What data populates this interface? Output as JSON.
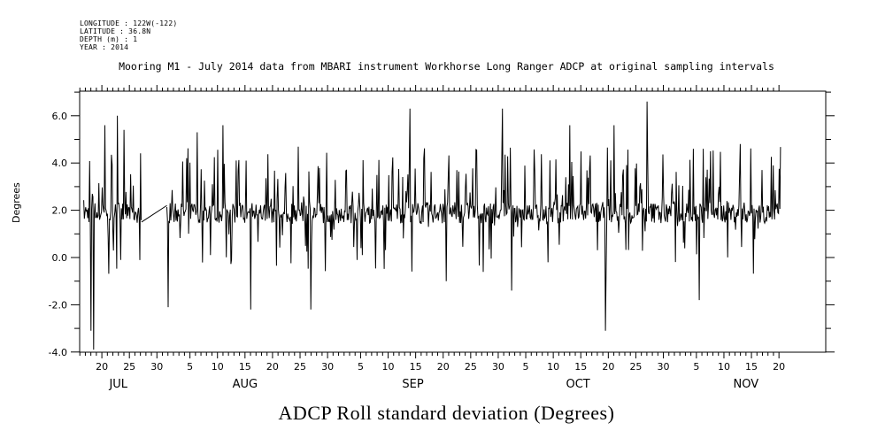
{
  "meta": {
    "lines": [
      "LONGITUDE : 122W(-122)",
      "LATITUDE : 36.8N",
      "DEPTH (m) : 1",
      "YEAR : 2014"
    ]
  },
  "title": "Mooring M1 - July 2014 data from MBARI instrument Workhorse Long Ranger ADCP at original sampling intervals",
  "bottom_title": "ADCP Roll standard deviation (Degrees)",
  "chart_data": {
    "type": "line",
    "title": "Mooring M1 - July 2014 data from MBARI instrument Workhorse Long Ranger ADCP at original sampling intervals",
    "xlabel": "",
    "ylabel": "Degrees",
    "ylim": [
      -4.0,
      7.0
    ],
    "xlim_days": [
      0,
      128.5
    ],
    "x_origin": "2014-07-15",
    "y_ticks": [
      "-4.0",
      "-2.0",
      "0.0",
      "2.0",
      "4.0",
      "6.0"
    ],
    "y_tick_values": [
      -4,
      -2,
      0,
      2,
      4,
      6
    ],
    "x_ticks": [
      {
        "day": 5,
        "label": "20"
      },
      {
        "day": 10,
        "label": "25"
      },
      {
        "day": 15,
        "label": "30"
      },
      {
        "day": 21,
        "label": "5"
      },
      {
        "day": 26,
        "label": "10"
      },
      {
        "day": 31,
        "label": "15"
      },
      {
        "day": 36,
        "label": "20"
      },
      {
        "day": 41,
        "label": "25"
      },
      {
        "day": 46,
        "label": "30"
      },
      {
        "day": 52,
        "label": "5"
      },
      {
        "day": 57,
        "label": "10"
      },
      {
        "day": 62,
        "label": "15"
      },
      {
        "day": 67,
        "label": "20"
      },
      {
        "day": 72,
        "label": "25"
      },
      {
        "day": 77,
        "label": "30"
      },
      {
        "day": 82,
        "label": "5"
      },
      {
        "day": 87,
        "label": "10"
      },
      {
        "day": 92,
        "label": "15"
      },
      {
        "day": 97,
        "label": "20"
      },
      {
        "day": 102,
        "label": "25"
      },
      {
        "day": 107,
        "label": "30"
      },
      {
        "day": 113,
        "label": "5"
      },
      {
        "day": 118,
        "label": "10"
      },
      {
        "day": 123,
        "label": "15"
      },
      {
        "day": 128,
        "label": "20"
      }
    ],
    "months": [
      {
        "day": 8,
        "label": "JUL"
      },
      {
        "day": 31,
        "label": "AUG"
      },
      {
        "day": 61.5,
        "label": "SEP"
      },
      {
        "day": 91.5,
        "label": "OCT"
      },
      {
        "day": 122,
        "label": "NOV"
      }
    ],
    "series": [
      {
        "name": "ADCP Roll standard deviation",
        "baseline": 1.9,
        "gap_start_day": 12.2,
        "gap_end_day": 16.8,
        "gap_start_value": 1.5,
        "gap_end_value": 2.2,
        "spikes": [
          {
            "day": 3.5,
            "value": -3.9
          },
          {
            "day": 3.0,
            "value": -3.1
          },
          {
            "day": 5.5,
            "value": 5.6
          },
          {
            "day": 7.8,
            "value": 6.0
          },
          {
            "day": 9.0,
            "value": 5.4
          },
          {
            "day": 17.0,
            "value": -2.1
          },
          {
            "day": 22.3,
            "value": 5.3
          },
          {
            "day": 27.0,
            "value": 5.6
          },
          {
            "day": 32.0,
            "value": -2.2
          },
          {
            "day": 43.0,
            "value": -2.2
          },
          {
            "day": 61.0,
            "value": 6.3
          },
          {
            "day": 67.5,
            "value": -1.0
          },
          {
            "day": 77.7,
            "value": 6.3
          },
          {
            "day": 79.5,
            "value": -1.4
          },
          {
            "day": 90.0,
            "value": 5.6
          },
          {
            "day": 96.5,
            "value": -3.1
          },
          {
            "day": 98.0,
            "value": 5.6
          },
          {
            "day": 104.0,
            "value": 6.6
          },
          {
            "day": 113.5,
            "value": -1.8
          },
          {
            "day": 121.0,
            "value": 4.8
          },
          {
            "day": 127.0,
            "value": 3.9
          }
        ]
      }
    ]
  }
}
